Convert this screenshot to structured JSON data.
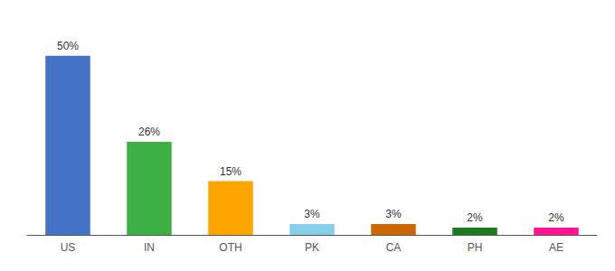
{
  "chart_data": {
    "type": "bar",
    "categories": [
      "US",
      "IN",
      "OTH",
      "PK",
      "CA",
      "PH",
      "AE"
    ],
    "values": [
      50,
      26,
      15,
      3,
      3,
      2,
      2
    ],
    "value_labels": [
      "50%",
      "26%",
      "15%",
      "3%",
      "3%",
      "2%",
      "2%"
    ],
    "colors": [
      "#4472C4",
      "#3CB043",
      "#FFA500",
      "#87CEEB",
      "#CC6600",
      "#1E7A1E",
      "#FF1493"
    ],
    "ylim": [
      0,
      58
    ],
    "grid": false,
    "data_labels": true,
    "tick_labels": "x"
  }
}
